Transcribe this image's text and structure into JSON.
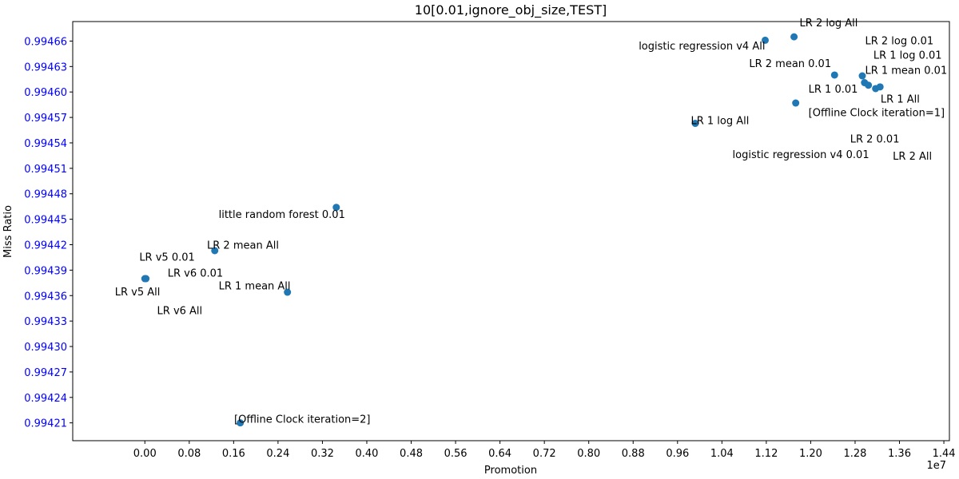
{
  "chart_data": {
    "type": "scatter",
    "title": "10[0.01,ignore_obj_size,TEST]",
    "xlabel": "Promotion",
    "ylabel": "Miss Ratio",
    "x_offset_label": "1e7",
    "xlim": [
      -1300000,
      14500000
    ],
    "ylim": [
      0.994189,
      0.994683
    ],
    "x_ticks": [
      0,
      800000,
      1600000,
      2400000,
      3200000,
      4000000,
      4800000,
      5600000,
      6400000,
      7200000,
      8000000,
      8800000,
      9600000,
      10400000,
      11200000,
      12000000,
      12800000,
      13600000,
      14400000
    ],
    "x_tick_labels": [
      "0.00",
      "0.08",
      "0.16",
      "0.24",
      "0.32",
      "0.40",
      "0.48",
      "0.56",
      "0.64",
      "0.72",
      "0.80",
      "0.88",
      "0.96",
      "1.04",
      "1.12",
      "1.20",
      "1.28",
      "1.36",
      "1.44"
    ],
    "y_ticks": [
      0.99421,
      0.99424,
      0.99427,
      0.9943,
      0.99433,
      0.99436,
      0.99439,
      0.99442,
      0.99445,
      0.99448,
      0.99451,
      0.99454,
      0.99457,
      0.9946,
      0.99463,
      0.99466
    ],
    "y_tick_labels": [
      "0.99421",
      "0.99424",
      "0.99427",
      "0.99430",
      "0.99433",
      "0.99436",
      "0.99439",
      "0.99442",
      "0.99445",
      "0.99448",
      "0.99451",
      "0.99454",
      "0.99457",
      "0.99460",
      "0.99463",
      "0.99466"
    ],
    "grid": false,
    "marker_color": "#1f77b4",
    "ytick_color": "#0000ff",
    "points": [
      {
        "x": 11180000,
        "y": 0.994661
      },
      {
        "x": 11700000,
        "y": 0.994665
      },
      {
        "x": 12430000,
        "y": 0.99462
      },
      {
        "x": 12930000,
        "y": 0.994619
      },
      {
        "x": 12970000,
        "y": 0.994611
      },
      {
        "x": 13040000,
        "y": 0.994608
      },
      {
        "x": 13170000,
        "y": 0.994604
      },
      {
        "x": 13250000,
        "y": 0.994606
      },
      {
        "x": 11730000,
        "y": 0.994587
      },
      {
        "x": 9920000,
        "y": 0.994563
      },
      {
        "x": 3450000,
        "y": 0.994464
      },
      {
        "x": 1260000,
        "y": 0.994413
      },
      {
        "x": 0,
        "y": 0.99438
      },
      {
        "x": 20000,
        "y": 0.99438
      },
      {
        "x": 2570000,
        "y": 0.994364
      },
      {
        "x": 1720000,
        "y": 0.99421
      }
    ],
    "annotations": [
      {
        "text": "LR 2 log All",
        "x": 11800000,
        "y": 0.994682
      },
      {
        "text": "logistic regression v4 All",
        "x": 8900000,
        "y": 0.994655
      },
      {
        "text": "LR 2 log 0.01",
        "x": 12980000,
        "y": 0.994661
      },
      {
        "text": "LR 1 log 0.01",
        "x": 13130000,
        "y": 0.994644
      },
      {
        "text": "LR 2 mean 0.01",
        "x": 10890000,
        "y": 0.994634
      },
      {
        "text": "LR 1 mean 0.01",
        "x": 12980000,
        "y": 0.994626
      },
      {
        "text": "LR 1 0.01",
        "x": 11960000,
        "y": 0.994604
      },
      {
        "text": "LR 1 All",
        "x": 13260000,
        "y": 0.994592
      },
      {
        "text": "[Offline Clock iteration=1]",
        "x": 11960000,
        "y": 0.994576
      },
      {
        "text": "LR 1 log All",
        "x": 9840000,
        "y": 0.994567
      },
      {
        "text": "LR 2 0.01",
        "x": 12710000,
        "y": 0.994545
      },
      {
        "text": "logistic regression v4 0.01",
        "x": 10590000,
        "y": 0.994527
      },
      {
        "text": "LR 2 All",
        "x": 13480000,
        "y": 0.994525
      },
      {
        "text": "little random forest 0.01",
        "x": 1330000,
        "y": 0.994456
      },
      {
        "text": "LR 2 mean All",
        "x": 1120000,
        "y": 0.99442
      },
      {
        "text": "LR v5 0.01",
        "x": -100000,
        "y": 0.994406
      },
      {
        "text": "LR v6 0.01",
        "x": 410000,
        "y": 0.994387
      },
      {
        "text": "LR 1 mean All",
        "x": 1330000,
        "y": 0.994372
      },
      {
        "text": "LR v5 All",
        "x": -540000,
        "y": 0.994365
      },
      {
        "text": "LR v6 All",
        "x": 220000,
        "y": 0.994343
      },
      {
        "text": "[Offline Clock iteration=2]",
        "x": 1610000,
        "y": 0.994215
      }
    ]
  }
}
